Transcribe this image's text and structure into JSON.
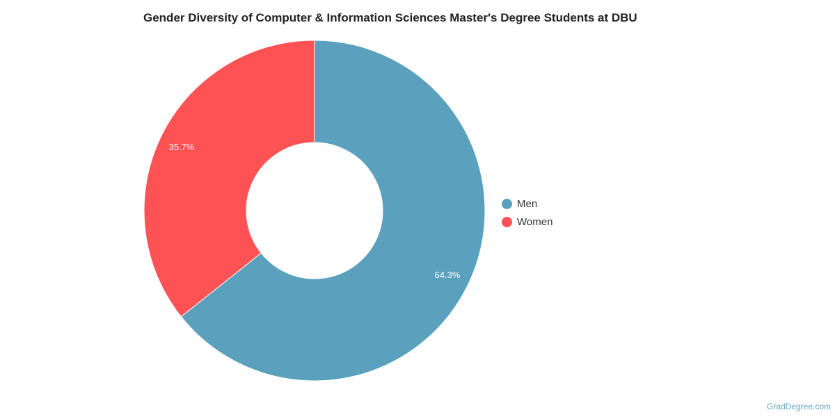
{
  "chart_data": {
    "type": "pie",
    "title": "Gender Diversity of Computer & Information Sciences Master's Degree Students at DBU",
    "slices": [
      {
        "label": "Men",
        "value": 64.3,
        "display": "64.3%",
        "color": "#5ba1bd"
      },
      {
        "label": "Women",
        "value": 35.7,
        "display": "35.7%",
        "color": "#ff5255"
      }
    ],
    "donut": true,
    "legend_position": "right"
  },
  "legend": {
    "items": [
      {
        "label": "Men",
        "color": "#5ba1bd"
      },
      {
        "label": "Women",
        "color": "#ff5255"
      }
    ]
  },
  "watermark": "GradDegree.com"
}
